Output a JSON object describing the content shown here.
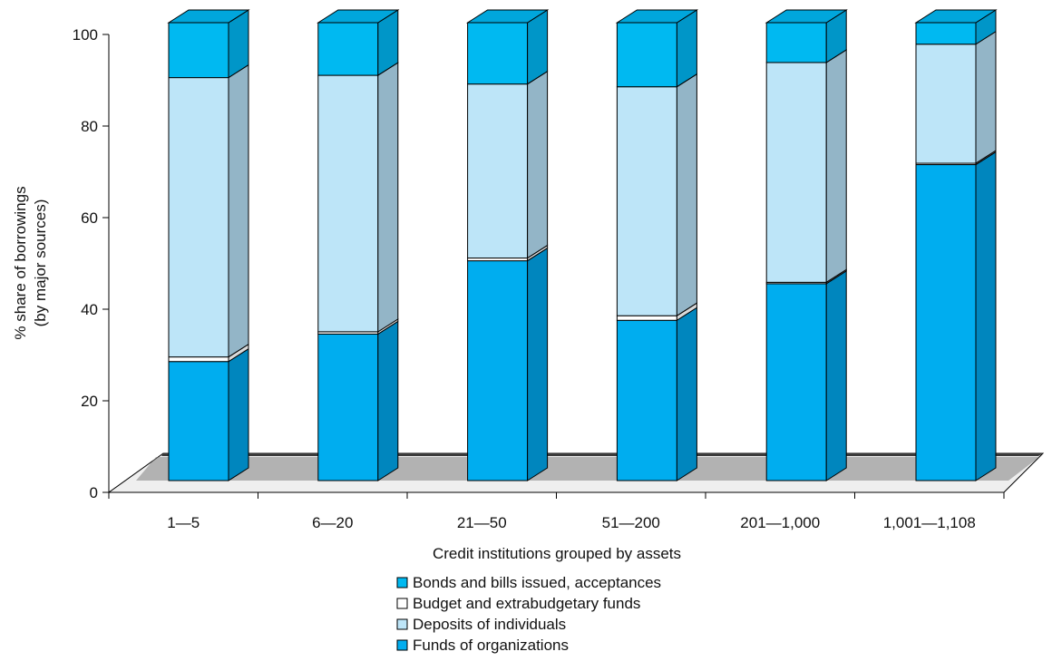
{
  "chart_data": {
    "type": "bar",
    "stacked": true,
    "three_d": true,
    "title": "",
    "xlabel": "Credit institutions grouped by assets",
    "ylabel_lines": [
      "% share of borrowings",
      "(by major sources)"
    ],
    "ylim": [
      0,
      100
    ],
    "yticks": [
      0,
      20,
      40,
      60,
      80,
      100
    ],
    "categories": [
      "1—5",
      "6—20",
      "21—50",
      "51—200",
      "201—1,000",
      "1,001—1,108"
    ],
    "series": [
      {
        "name": "Funds of organizations",
        "values": [
          26,
          32,
          48,
          35,
          43,
          69
        ],
        "color": "#00ADEF"
      },
      {
        "name": "Budget and extrabudgetary funds",
        "values": [
          1,
          0.5,
          0.6,
          1,
          0.3,
          0.3
        ],
        "color": "#FFFFFF"
      },
      {
        "name": "Deposits of individuals",
        "values": [
          61,
          56,
          38,
          50,
          48,
          26
        ],
        "color": "#BDE5F8"
      },
      {
        "name": "Bonds and bills issued, acceptances",
        "values": [
          12,
          11.5,
          13.4,
          14,
          8.7,
          4.7
        ],
        "color": "#00B9F1"
      }
    ],
    "legend_order": [
      "Bonds and bills issued, acceptances",
      "Budget and extrabudgetary funds",
      "Deposits of individuals",
      "Funds of organizations"
    ],
    "legend_placement": "bottom",
    "grid": false
  }
}
